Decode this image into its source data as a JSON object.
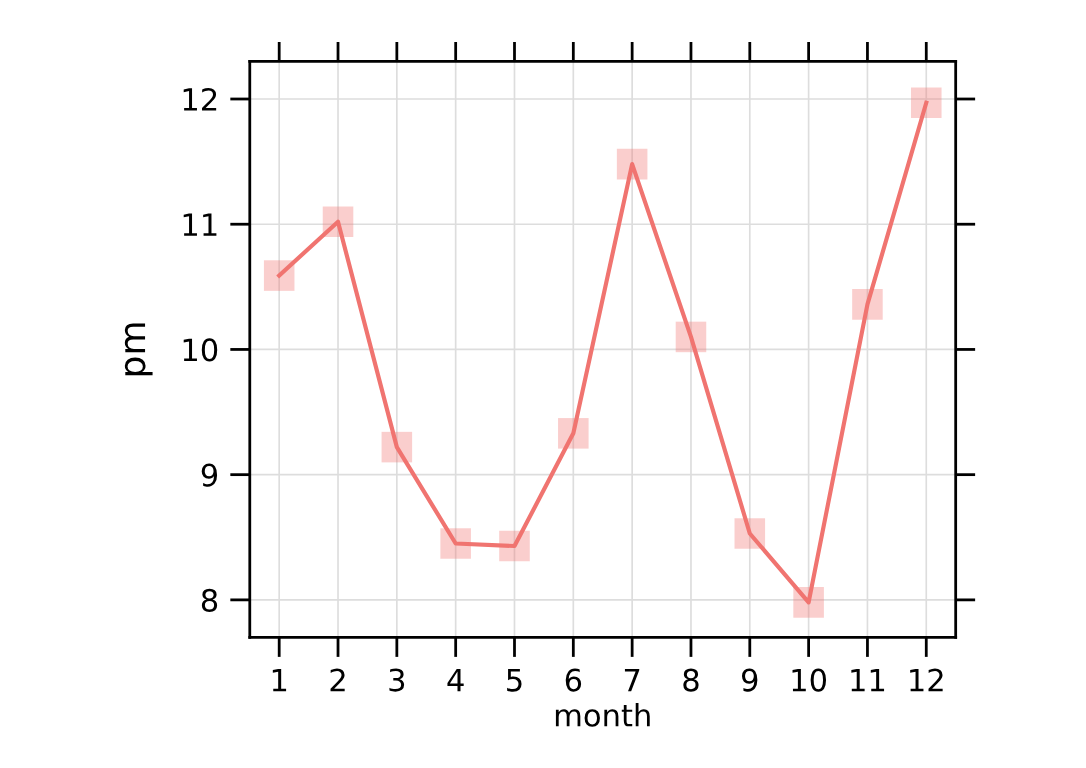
{
  "chart_data": {
    "type": "line",
    "xlabel": "month",
    "ylabel": "pm",
    "categories": [
      "1",
      "2",
      "3",
      "4",
      "5",
      "6",
      "7",
      "8",
      "9",
      "10",
      "11",
      "12"
    ],
    "series": [
      {
        "color": "#f07470",
        "values": [
          10.59,
          11.02,
          9.22,
          8.45,
          8.43,
          9.33,
          11.48,
          10.1,
          8.53,
          7.98,
          10.36,
          11.97
        ]
      }
    ],
    "ylim": [
      7.7,
      12.3
    ],
    "yticks": [
      8,
      9,
      10,
      11,
      12
    ],
    "grid": true,
    "marker": "square",
    "line_style": "solid"
  }
}
